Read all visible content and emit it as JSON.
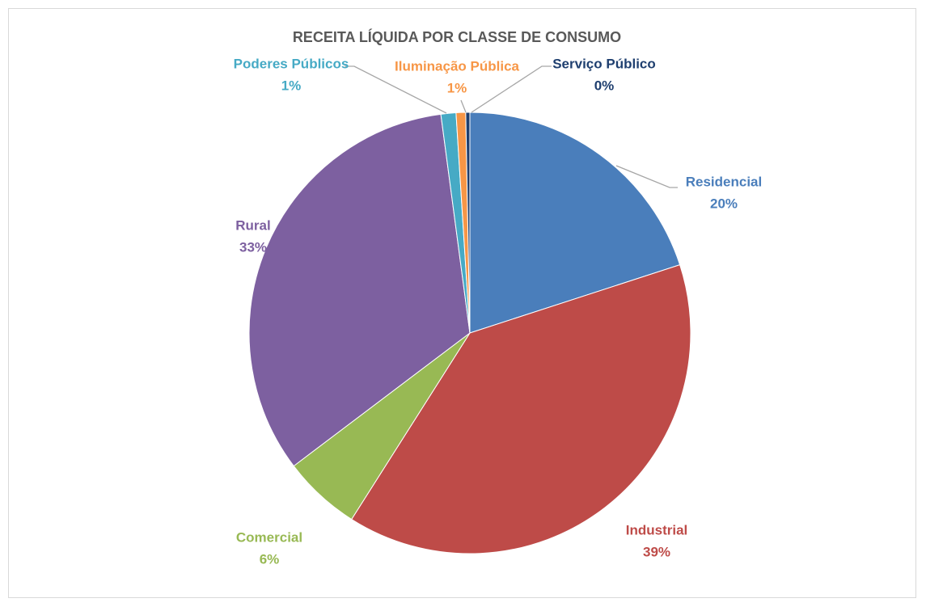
{
  "chart_data": {
    "type": "pie",
    "title": "RECEITA LÍQUIDA POR CLASSE DE CONSUMO",
    "categories": [
      "Residencial",
      "Industrial",
      "Comercial",
      "Rural",
      "Poderes Públicos",
      "Iluminação Pública",
      "Serviço Público"
    ],
    "values": [
      20.0,
      39.0,
      5.7,
      33.2,
      1.1,
      0.7,
      0.3
    ],
    "value_labels": [
      "20%",
      "39%",
      "6%",
      "33%",
      "1%",
      "1%",
      "0%"
    ],
    "colors": [
      "#4a7ebb",
      "#be4b48",
      "#98b954",
      "#7d60a0",
      "#46aac5",
      "#f79646",
      "#1f3f6f"
    ]
  }
}
